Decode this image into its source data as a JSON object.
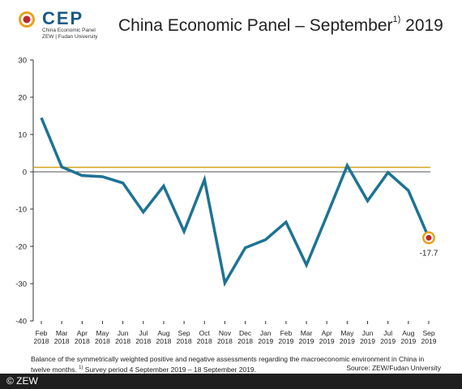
{
  "header": {
    "logo_text": "CEP",
    "logo_sub1": "China Economic Panel",
    "logo_sub2": "ZEW | Fudan University",
    "title_main": "China Economic Panel – September",
    "title_sup": "1)",
    "title_year": " 2019"
  },
  "footnote": {
    "line1": "Balance of the symmetrically weighted positive and negative assessments regarding the macroeconomic environment in China in",
    "line2": "twelve months.",
    "sup": "1)",
    "line2_rest": " Survey period 4 September 2019 – 18 September 2019.",
    "source": "Source: ZEW/Fudan University"
  },
  "footer": {
    "copyright": "© ZEW"
  },
  "chart_data": {
    "type": "line",
    "categories": [
      [
        "Feb",
        "2018"
      ],
      [
        "Mar",
        "2018"
      ],
      [
        "Apr",
        "2018"
      ],
      [
        "May",
        "2018"
      ],
      [
        "Jun",
        "2018"
      ],
      [
        "Jul",
        "2018"
      ],
      [
        "Aug",
        "2018"
      ],
      [
        "Sep",
        "2018"
      ],
      [
        "Oct",
        "2018"
      ],
      [
        "Nov",
        "2018"
      ],
      [
        "Dec",
        "2018"
      ],
      [
        "Jan",
        "2019"
      ],
      [
        "Feb",
        "2019"
      ],
      [
        "Mar",
        "2019"
      ],
      [
        "Apr",
        "2019"
      ],
      [
        "May",
        "2019"
      ],
      [
        "Jun",
        "2019"
      ],
      [
        "Jul",
        "2019"
      ],
      [
        "Aug",
        "2019"
      ],
      [
        "Sep",
        "2019"
      ]
    ],
    "series": [
      {
        "color": "#1d7394",
        "values": [
          14.5,
          1.3,
          -1.0,
          -1.3,
          -3.0,
          -10.8,
          -3.8,
          -16.0,
          -2.1,
          -29.8,
          -20.4,
          -18.2,
          -13.5,
          -25.0,
          -11.8,
          1.7,
          -7.8,
          -0.2,
          -5.0,
          -17.7
        ]
      }
    ],
    "reference_line": {
      "value": 1.2,
      "color": "#d5a21b"
    },
    "ylim": [
      -40,
      30
    ],
    "yticks": [
      30,
      20,
      10,
      0,
      -10,
      -20,
      -30,
      -40
    ],
    "grid": false,
    "highlight": {
      "index": 19,
      "label": "-17.7"
    }
  }
}
